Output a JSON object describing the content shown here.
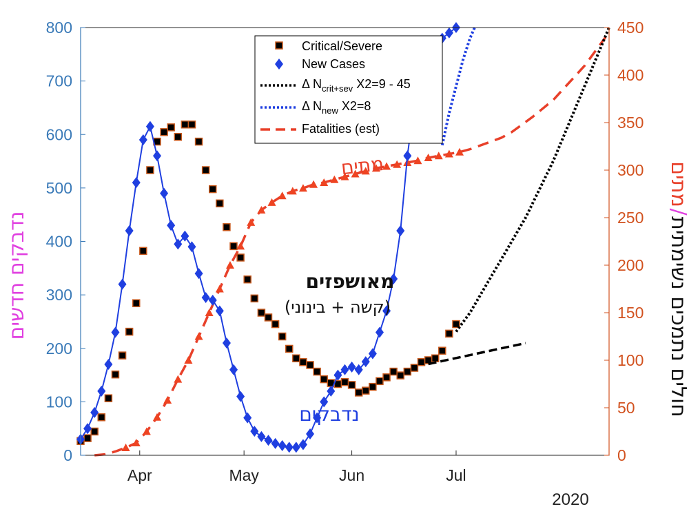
{
  "chart_data": {
    "type": "line",
    "x_axis": {
      "tick_labels": [
        "Apr",
        "May",
        "Jun",
        "Jul"
      ],
      "tick_days": [
        1,
        31,
        62,
        92
      ],
      "range_days": [
        -16,
        136
      ],
      "year_label": "2020"
    },
    "y_left": {
      "label": "נדבקים חדשים",
      "range": [
        0,
        800
      ],
      "ticks": [
        "0",
        "100",
        "200",
        "300",
        "400",
        "500",
        "600",
        "700",
        "800"
      ]
    },
    "y_right": {
      "label_dark": "חולים נתמכים נשימתית",
      "label_sep": "/",
      "label_red": "מתים",
      "range": [
        0,
        450
      ],
      "ticks": [
        "0",
        "50",
        "100",
        "150",
        "200",
        "250",
        "300",
        "350",
        "400",
        "450"
      ]
    },
    "legend": {
      "critical": "Critical/Severe",
      "new_cases": "New Cases",
      "dn_crit_pre": "Δ N",
      "dn_crit_sub": "crit+sev",
      "dn_crit_post": " X2=9 - 45",
      "dn_new_pre": "Δ N",
      "dn_new_sub": "new",
      "dn_new_post": " X2=8",
      "fatalities": "Fatalities (est)"
    },
    "annotations": {
      "hospitalized": "מאושפזים",
      "hospitalized_sub": "(קשה + בינוני)",
      "infected": "נדבקים",
      "deaths": "מתים"
    },
    "colors": {
      "new_cases": "#1f3fe0",
      "critical_fill": "#000000",
      "critical_edge": "#c85a1e",
      "fatalities": "#e8402a",
      "deaths_markers": "#ee4422",
      "left_axis": "#3a7ab8",
      "right_axis": "#d2521f",
      "left_label": "#e040e0"
    },
    "series": [
      {
        "name": "New Cases",
        "axis": "left",
        "x": [
          -16,
          -14,
          -12,
          -10,
          -8,
          -6,
          -4,
          -2,
          0,
          2,
          4,
          6,
          8,
          10,
          12,
          14,
          16,
          18,
          20,
          22,
          24,
          26,
          28,
          30,
          32,
          34,
          36,
          38,
          40,
          42,
          44,
          46,
          48,
          50,
          52,
          54,
          56,
          58,
          60,
          62,
          64,
          66,
          68,
          70,
          72,
          74,
          76,
          78,
          80,
          82,
          84,
          86,
          88,
          90,
          92
        ],
        "y": [
          30,
          50,
          80,
          120,
          170,
          230,
          320,
          420,
          510,
          590,
          615,
          560,
          490,
          430,
          395,
          410,
          390,
          340,
          295,
          290,
          270,
          210,
          160,
          110,
          70,
          45,
          35,
          28,
          22,
          18,
          15,
          15,
          20,
          40,
          70,
          100,
          120,
          150,
          160,
          165,
          160,
          175,
          190,
          230,
          270,
          330,
          420,
          560,
          660,
          720,
          740,
          760,
          780,
          790,
          800
        ]
      },
      {
        "name": "Critical/Severe",
        "axis": "right",
        "x": [
          -16,
          -14,
          -12,
          -10,
          -8,
          -6,
          -4,
          -2,
          0,
          2,
          4,
          6,
          8,
          10,
          12,
          14,
          16,
          18,
          20,
          22,
          24,
          26,
          28,
          30,
          32,
          34,
          36,
          38,
          40,
          42,
          44,
          46,
          48,
          50,
          52,
          54,
          56,
          58,
          60,
          62,
          64,
          66,
          68,
          70,
          72,
          74,
          76,
          78,
          80,
          82,
          84,
          86,
          88,
          90,
          92
        ],
        "y": [
          15,
          18,
          25,
          40,
          60,
          85,
          105,
          130,
          160,
          215,
          300,
          330,
          340,
          345,
          335,
          348,
          348,
          330,
          300,
          280,
          265,
          240,
          220,
          208,
          185,
          165,
          150,
          145,
          138,
          125,
          112,
          102,
          98,
          95,
          88,
          80,
          76,
          75,
          77,
          74,
          66,
          68,
          72,
          78,
          82,
          88,
          84,
          88,
          92,
          98,
          100,
          102,
          110,
          128,
          138
        ]
      },
      {
        "name": "Fatalities (est)",
        "axis": "right",
        "x": [
          -12,
          -9,
          -6,
          -3,
          0,
          3,
          6,
          9,
          12,
          15,
          18,
          21,
          24,
          27,
          30,
          33,
          36,
          39,
          42,
          45,
          48,
          51,
          54,
          57,
          60,
          63,
          66,
          69,
          72,
          75,
          78,
          81,
          84,
          87,
          90,
          93,
          96,
          99,
          102,
          105,
          108,
          111,
          114,
          117,
          120,
          123,
          126,
          129,
          132,
          135
        ],
        "y": [
          0,
          1,
          4,
          8,
          13,
          25,
          40,
          58,
          80,
          100,
          125,
          150,
          175,
          200,
          220,
          245,
          258,
          266,
          273,
          278,
          281,
          285,
          287,
          290,
          293,
          296,
          299,
          302,
          304,
          306,
          308,
          310,
          313,
          315,
          317,
          319,
          322,
          326,
          330,
          334,
          340,
          348,
          356,
          365,
          374,
          386,
          398,
          410,
          425,
          440
        ]
      },
      {
        "name": "Δ N crit+sev X2=9 - 45",
        "axis": "right",
        "x": [
          92,
          96,
          100,
          104,
          108,
          112,
          116,
          120,
          124,
          128,
          132,
          136
        ],
        "y": [
          130,
          150,
          175,
          200,
          225,
          250,
          280,
          310,
          345,
          380,
          415,
          450
        ]
      },
      {
        "name": "Δ N new X2=8",
        "axis": "left",
        "x": [
          88,
          90,
          92,
          94,
          96,
          98,
          100
        ],
        "y": [
          580,
          640,
          690,
          740,
          780,
          810,
          830
        ]
      }
    ]
  }
}
